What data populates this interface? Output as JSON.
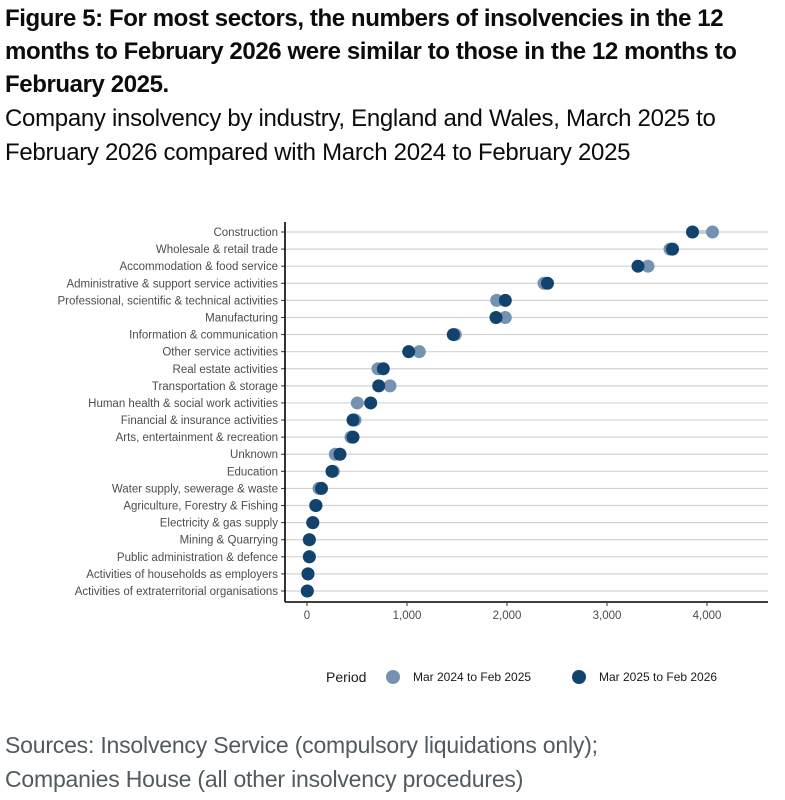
{
  "figure": {
    "title": "Figure 5: For most sectors, the numbers of insolvencies in the 12 months to February 2026 were similar to those in the 12 months to February 2025.",
    "subtitle": "Company insolvency by industry, England and Wales, March 2025 to February 2026 compared with March 2024 to February 2025",
    "source_line1": "Sources: Insolvency Service (compulsory liquidations only);",
    "source_line2": "Companies House (all other insolvency procedures)"
  },
  "colors": {
    "previous_period": "#7593b0",
    "current_period": "#12436d",
    "segment": "#cccccc",
    "gridline": "#d3d3d3",
    "axis": "#000000"
  },
  "chart_data": {
    "type": "scatter",
    "subtype": "dumbbell",
    "title": "Company insolvency by industry, England and Wales, March 2025 to February 2026 compared with March 2024 to February 2025",
    "xlabel": "",
    "ylabel": "",
    "xlim": [
      -220,
      4610
    ],
    "x_ticks": [
      0,
      1000,
      2000,
      3000,
      4000
    ],
    "x_tick_labels": [
      "0",
      "1,000",
      "2,000",
      "3,000",
      "4,000"
    ],
    "grid": "horizontal",
    "legend": {
      "title": "Period",
      "position": "bottom",
      "entries": [
        "Mar 2024 to Feb 2025",
        "Mar 2025 to Feb 2026"
      ]
    },
    "categories": [
      "Construction",
      "Wholesale & retail trade",
      "Accommodation & food service",
      "Administrative & support service activities",
      "Professional, scientific & technical activities",
      "Manufacturing",
      "Information & communication",
      "Other service activities",
      "Real estate activities",
      "Transportation & storage",
      "Human health & social work activities",
      "Financial & insurance activities",
      "Arts, entertainment & recreation",
      "Unknown",
      "Education",
      "Water supply, sewerage & waste",
      "Agriculture, Forestry & Fishing",
      "Electricity & gas supply",
      "Mining & Quarrying",
      "Public administration & defence",
      "Activities of households as employers",
      "Activities of extraterritorial organisations"
    ],
    "series": [
      {
        "name": "Mar 2024 to Feb 2025",
        "values": [
          4055,
          3630,
          3410,
          2370,
          1897,
          1983,
          1483,
          1123,
          710,
          830,
          503,
          480,
          440,
          283,
          263,
          120,
          85,
          60,
          25,
          25,
          10,
          3
        ]
      },
      {
        "name": "Mar 2025 to Feb 2026",
        "values": [
          3855,
          3655,
          3310,
          2405,
          1983,
          1890,
          1463,
          1017,
          763,
          717,
          637,
          460,
          460,
          330,
          250,
          145,
          90,
          57,
          23,
          23,
          10,
          3
        ]
      }
    ]
  }
}
